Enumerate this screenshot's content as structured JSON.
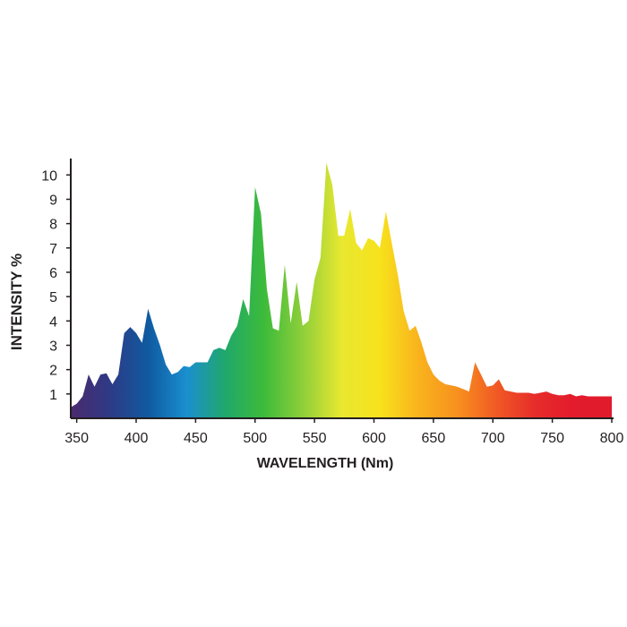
{
  "chart_data": {
    "type": "area",
    "title": "",
    "xlabel": "WAVELENGTH (Nm)",
    "ylabel": "INTENSITY %",
    "xlim": [
      345,
      800
    ],
    "ylim": [
      0,
      10.6
    ],
    "x_ticks": [
      350,
      400,
      450,
      500,
      550,
      600,
      650,
      700,
      750,
      800
    ],
    "y_ticks": [
      1,
      2,
      3,
      4,
      5,
      6,
      7,
      8,
      9,
      10
    ],
    "grid": false,
    "fill": "rainbow gradient (violet to red) by wavelength",
    "colors": {
      "axis": "#231f20",
      "text": "#231f20",
      "gradient_stops": [
        "#4b2a6e",
        "#2e3a85",
        "#0f5aa0",
        "#1a8fcf",
        "#20a86a",
        "#3dbb3a",
        "#8fcf3a",
        "#e8e830",
        "#f7e21c",
        "#f9b31d",
        "#f7911e",
        "#f15a24",
        "#e62d2a",
        "#e31b2c",
        "#e11b2c"
      ]
    },
    "series": [
      {
        "values": [
          {
            "x": 345,
            "y": 0.45
          },
          {
            "x": 350,
            "y": 0.6
          },
          {
            "x": 355,
            "y": 0.9
          },
          {
            "x": 360,
            "y": 1.8
          },
          {
            "x": 365,
            "y": 1.3
          },
          {
            "x": 370,
            "y": 1.8
          },
          {
            "x": 375,
            "y": 1.85
          },
          {
            "x": 380,
            "y": 1.4
          },
          {
            "x": 385,
            "y": 1.8
          },
          {
            "x": 390,
            "y": 3.5
          },
          {
            "x": 395,
            "y": 3.75
          },
          {
            "x": 400,
            "y": 3.5
          },
          {
            "x": 405,
            "y": 3.1
          },
          {
            "x": 410,
            "y": 4.5
          },
          {
            "x": 415,
            "y": 3.7
          },
          {
            "x": 420,
            "y": 3.0
          },
          {
            "x": 425,
            "y": 2.2
          },
          {
            "x": 430,
            "y": 1.8
          },
          {
            "x": 435,
            "y": 1.9
          },
          {
            "x": 440,
            "y": 2.15
          },
          {
            "x": 445,
            "y": 2.1
          },
          {
            "x": 450,
            "y": 2.3
          },
          {
            "x": 455,
            "y": 2.3
          },
          {
            "x": 460,
            "y": 2.3
          },
          {
            "x": 465,
            "y": 2.8
          },
          {
            "x": 470,
            "y": 2.9
          },
          {
            "x": 475,
            "y": 2.8
          },
          {
            "x": 480,
            "y": 3.4
          },
          {
            "x": 485,
            "y": 3.8
          },
          {
            "x": 490,
            "y": 4.9
          },
          {
            "x": 495,
            "y": 4.2
          },
          {
            "x": 500,
            "y": 9.5
          },
          {
            "x": 505,
            "y": 8.4
          },
          {
            "x": 510,
            "y": 5.3
          },
          {
            "x": 515,
            "y": 3.7
          },
          {
            "x": 520,
            "y": 3.6
          },
          {
            "x": 525,
            "y": 6.3
          },
          {
            "x": 530,
            "y": 3.9
          },
          {
            "x": 535,
            "y": 5.6
          },
          {
            "x": 540,
            "y": 3.8
          },
          {
            "x": 545,
            "y": 4.0
          },
          {
            "x": 550,
            "y": 5.7
          },
          {
            "x": 555,
            "y": 6.6
          },
          {
            "x": 560,
            "y": 10.5
          },
          {
            "x": 565,
            "y": 9.6
          },
          {
            "x": 570,
            "y": 7.5
          },
          {
            "x": 575,
            "y": 7.5
          },
          {
            "x": 580,
            "y": 8.6
          },
          {
            "x": 585,
            "y": 7.2
          },
          {
            "x": 590,
            "y": 6.9
          },
          {
            "x": 595,
            "y": 7.4
          },
          {
            "x": 600,
            "y": 7.3
          },
          {
            "x": 605,
            "y": 7.0
          },
          {
            "x": 610,
            "y": 8.5
          },
          {
            "x": 615,
            "y": 7.2
          },
          {
            "x": 620,
            "y": 5.9
          },
          {
            "x": 625,
            "y": 4.4
          },
          {
            "x": 630,
            "y": 3.6
          },
          {
            "x": 635,
            "y": 3.8
          },
          {
            "x": 640,
            "y": 3.1
          },
          {
            "x": 645,
            "y": 2.3
          },
          {
            "x": 650,
            "y": 1.8
          },
          {
            "x": 655,
            "y": 1.55
          },
          {
            "x": 660,
            "y": 1.4
          },
          {
            "x": 665,
            "y": 1.35
          },
          {
            "x": 670,
            "y": 1.3
          },
          {
            "x": 675,
            "y": 1.2
          },
          {
            "x": 680,
            "y": 1.1
          },
          {
            "x": 685,
            "y": 2.3
          },
          {
            "x": 690,
            "y": 1.8
          },
          {
            "x": 695,
            "y": 1.3
          },
          {
            "x": 700,
            "y": 1.35
          },
          {
            "x": 705,
            "y": 1.6
          },
          {
            "x": 710,
            "y": 1.15
          },
          {
            "x": 715,
            "y": 1.1
          },
          {
            "x": 720,
            "y": 1.05
          },
          {
            "x": 725,
            "y": 1.05
          },
          {
            "x": 730,
            "y": 1.05
          },
          {
            "x": 735,
            "y": 1.0
          },
          {
            "x": 740,
            "y": 1.05
          },
          {
            "x": 745,
            "y": 1.1
          },
          {
            "x": 750,
            "y": 1.0
          },
          {
            "x": 755,
            "y": 0.95
          },
          {
            "x": 760,
            "y": 0.95
          },
          {
            "x": 765,
            "y": 1.0
          },
          {
            "x": 770,
            "y": 0.9
          },
          {
            "x": 775,
            "y": 0.95
          },
          {
            "x": 780,
            "y": 0.9
          },
          {
            "x": 785,
            "y": 0.9
          },
          {
            "x": 790,
            "y": 0.9
          },
          {
            "x": 795,
            "y": 0.9
          },
          {
            "x": 800,
            "y": 0.9
          }
        ]
      }
    ]
  }
}
